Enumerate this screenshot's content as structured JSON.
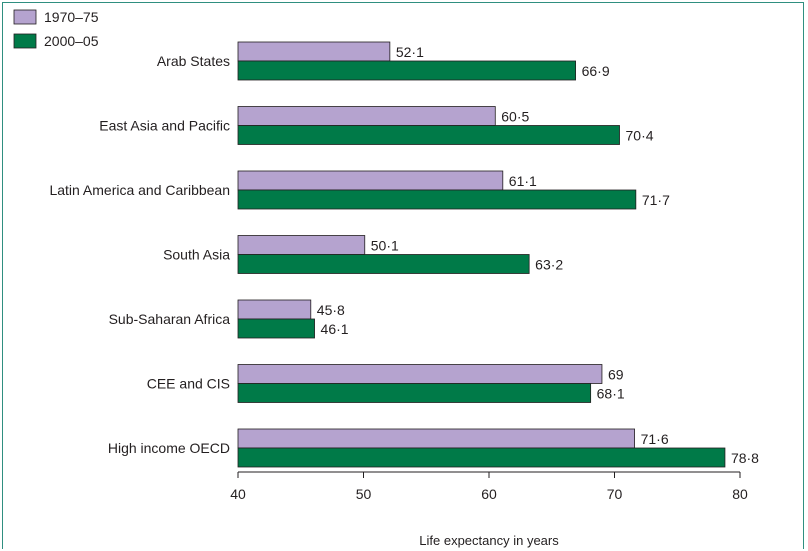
{
  "chart_data": {
    "type": "bar",
    "orientation": "horizontal",
    "title": "",
    "xlabel": "Life expectancy in years",
    "ylabel": "",
    "xlim": [
      40,
      80
    ],
    "xticks": [
      "40",
      "50",
      "60",
      "70",
      "80"
    ],
    "categories": [
      "Arab States",
      "East Asia and Pacific",
      "Latin America and Caribbean",
      "South Asia",
      "Sub-Saharan Africa",
      "CEE and CIS",
      "High income OECD"
    ],
    "series": [
      {
        "name": "1970–75",
        "color": "#b5a3cf",
        "values": [
          52.1,
          60.5,
          61.1,
          50.1,
          45.8,
          69,
          71.6
        ],
        "labels": [
          "52·1",
          "60·5",
          "61·1",
          "50·1",
          "45·8",
          "69",
          "71·6"
        ]
      },
      {
        "name": "2000–05",
        "color": "#007a48",
        "values": [
          66.9,
          70.4,
          71.7,
          63.2,
          46.1,
          68.1,
          78.8
        ],
        "labels": [
          "66·9",
          "70·4",
          "71·7",
          "63·2",
          "46·1",
          "68·1",
          "78·8"
        ]
      }
    ],
    "legend": "top-left",
    "grid": false
  }
}
